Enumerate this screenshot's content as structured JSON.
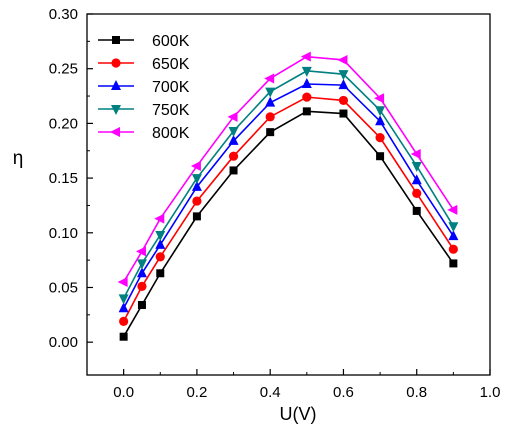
{
  "chart_data": {
    "type": "line",
    "title": "",
    "xlabel": "U(V)",
    "ylabel": "η",
    "xlim": [
      -0.1,
      1.0
    ],
    "ylim": [
      -0.03,
      0.3
    ],
    "xticks": [
      "0.0",
      "0.2",
      "0.4",
      "0.6",
      "0.8",
      "1.0"
    ],
    "yticks": [
      "0.00",
      "0.05",
      "0.10",
      "0.15",
      "0.20",
      "0.25",
      "0.30"
    ],
    "grid": false,
    "legend_position": "top-left",
    "x": [
      0.0,
      0.05,
      0.1,
      0.2,
      0.3,
      0.4,
      0.5,
      0.6,
      0.7,
      0.8,
      0.9
    ],
    "series": [
      {
        "name": "600K",
        "color": "#000000",
        "marker": "square",
        "values": [
          0.005,
          0.034,
          0.063,
          0.115,
          0.157,
          0.192,
          0.211,
          0.209,
          0.17,
          0.12,
          0.072
        ]
      },
      {
        "name": "650K",
        "color": "#ff0000",
        "marker": "circle",
        "values": [
          0.019,
          0.051,
          0.078,
          0.129,
          0.17,
          0.206,
          0.224,
          0.221,
          0.187,
          0.136,
          0.085
        ]
      },
      {
        "name": "700K",
        "color": "#0000ff",
        "marker": "triangle-up",
        "values": [
          0.031,
          0.063,
          0.089,
          0.142,
          0.184,
          0.219,
          0.236,
          0.235,
          0.202,
          0.148,
          0.097
        ]
      },
      {
        "name": "750K",
        "color": "#008080",
        "marker": "triangle-down",
        "values": [
          0.04,
          0.072,
          0.098,
          0.15,
          0.193,
          0.229,
          0.248,
          0.245,
          0.212,
          0.161,
          0.106
        ]
      },
      {
        "name": "800K",
        "color": "#ff00ff",
        "marker": "triangle-left",
        "values": [
          0.055,
          0.083,
          0.113,
          0.161,
          0.206,
          0.241,
          0.261,
          0.258,
          0.223,
          0.172,
          0.121
        ]
      }
    ]
  }
}
